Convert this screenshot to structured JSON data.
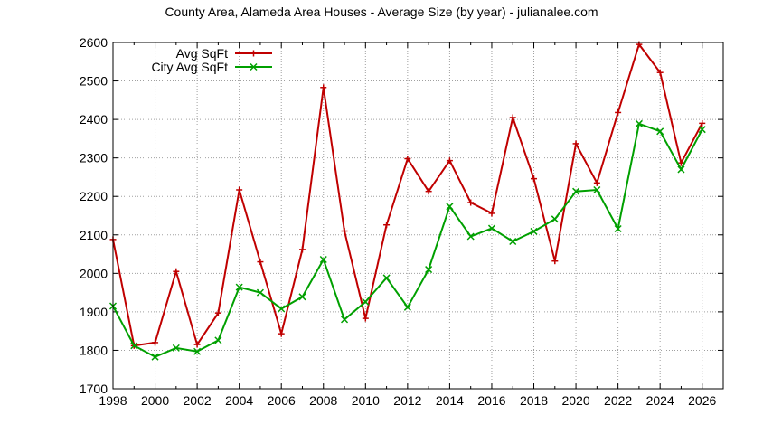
{
  "chart_data": {
    "type": "line",
    "title": "County Area, Alameda Area Houses - Average Size (by year) - julianalee.com",
    "xlabel": "",
    "ylabel": "",
    "xlim": [
      1998,
      2027
    ],
    "ylim": [
      1700,
      2600
    ],
    "xticks": [
      "1998",
      "2000",
      "2002",
      "2004",
      "2006",
      "2008",
      "2010",
      "2012",
      "2014",
      "2016",
      "2018",
      "2020",
      "2022",
      "2024",
      "2026"
    ],
    "yticks": [
      "1700",
      "1800",
      "1900",
      "2000",
      "2100",
      "2200",
      "2300",
      "2400",
      "2500",
      "2600"
    ],
    "grid": true,
    "legend_position": "top-left",
    "x": [
      1998,
      1999,
      2000,
      2001,
      2002,
      2003,
      2004,
      2005,
      2006,
      2007,
      2008,
      2009,
      2010,
      2011,
      2012,
      2013,
      2014,
      2015,
      2016,
      2017,
      2018,
      2019,
      2020,
      2021,
      2022,
      2023,
      2024,
      2025,
      2026
    ],
    "series": [
      {
        "name": "Avg SqFt",
        "color": "#c00000",
        "marker": "plus",
        "values": [
          2088,
          1812,
          1820,
          2005,
          1815,
          1897,
          2217,
          2030,
          1843,
          2062,
          2483,
          2110,
          1883,
          2126,
          2298,
          2213,
          2293,
          2184,
          2156,
          2405,
          2246,
          2032,
          2337,
          2235,
          2418,
          2595,
          2522,
          2287,
          2390
        ]
      },
      {
        "name": "City Avg SqFt",
        "color": "#00a000",
        "marker": "x",
        "values": [
          1915,
          1812,
          1783,
          1806,
          1797,
          1826,
          1964,
          1950,
          1908,
          1939,
          2036,
          1880,
          1926,
          1988,
          1912,
          2010,
          2174,
          2096,
          2117,
          2083,
          2109,
          2141,
          2213,
          2217,
          2116,
          2389,
          2369,
          2270,
          2374
        ]
      }
    ]
  }
}
